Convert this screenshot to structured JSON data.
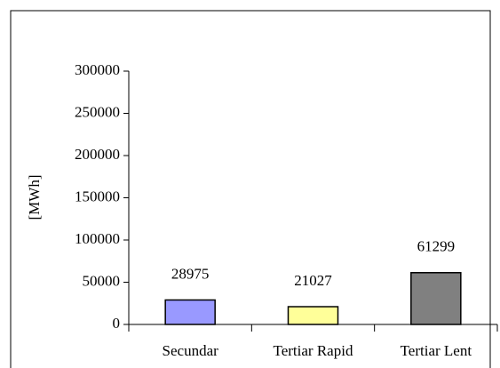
{
  "chart_data": {
    "type": "bar",
    "y_label": "[MWh]",
    "categories": [
      "Secundar",
      "Tertiar Rapid",
      "Tertiar Lent"
    ],
    "values": [
      28975,
      21027,
      61299
    ],
    "colors": [
      "#9999ff",
      "#ffff99",
      "#808080"
    ],
    "ylim": [
      0,
      300000
    ],
    "yticks": [
      0,
      50000,
      100000,
      150000,
      200000,
      250000,
      300000
    ],
    "grid": false,
    "data_labels": true
  }
}
